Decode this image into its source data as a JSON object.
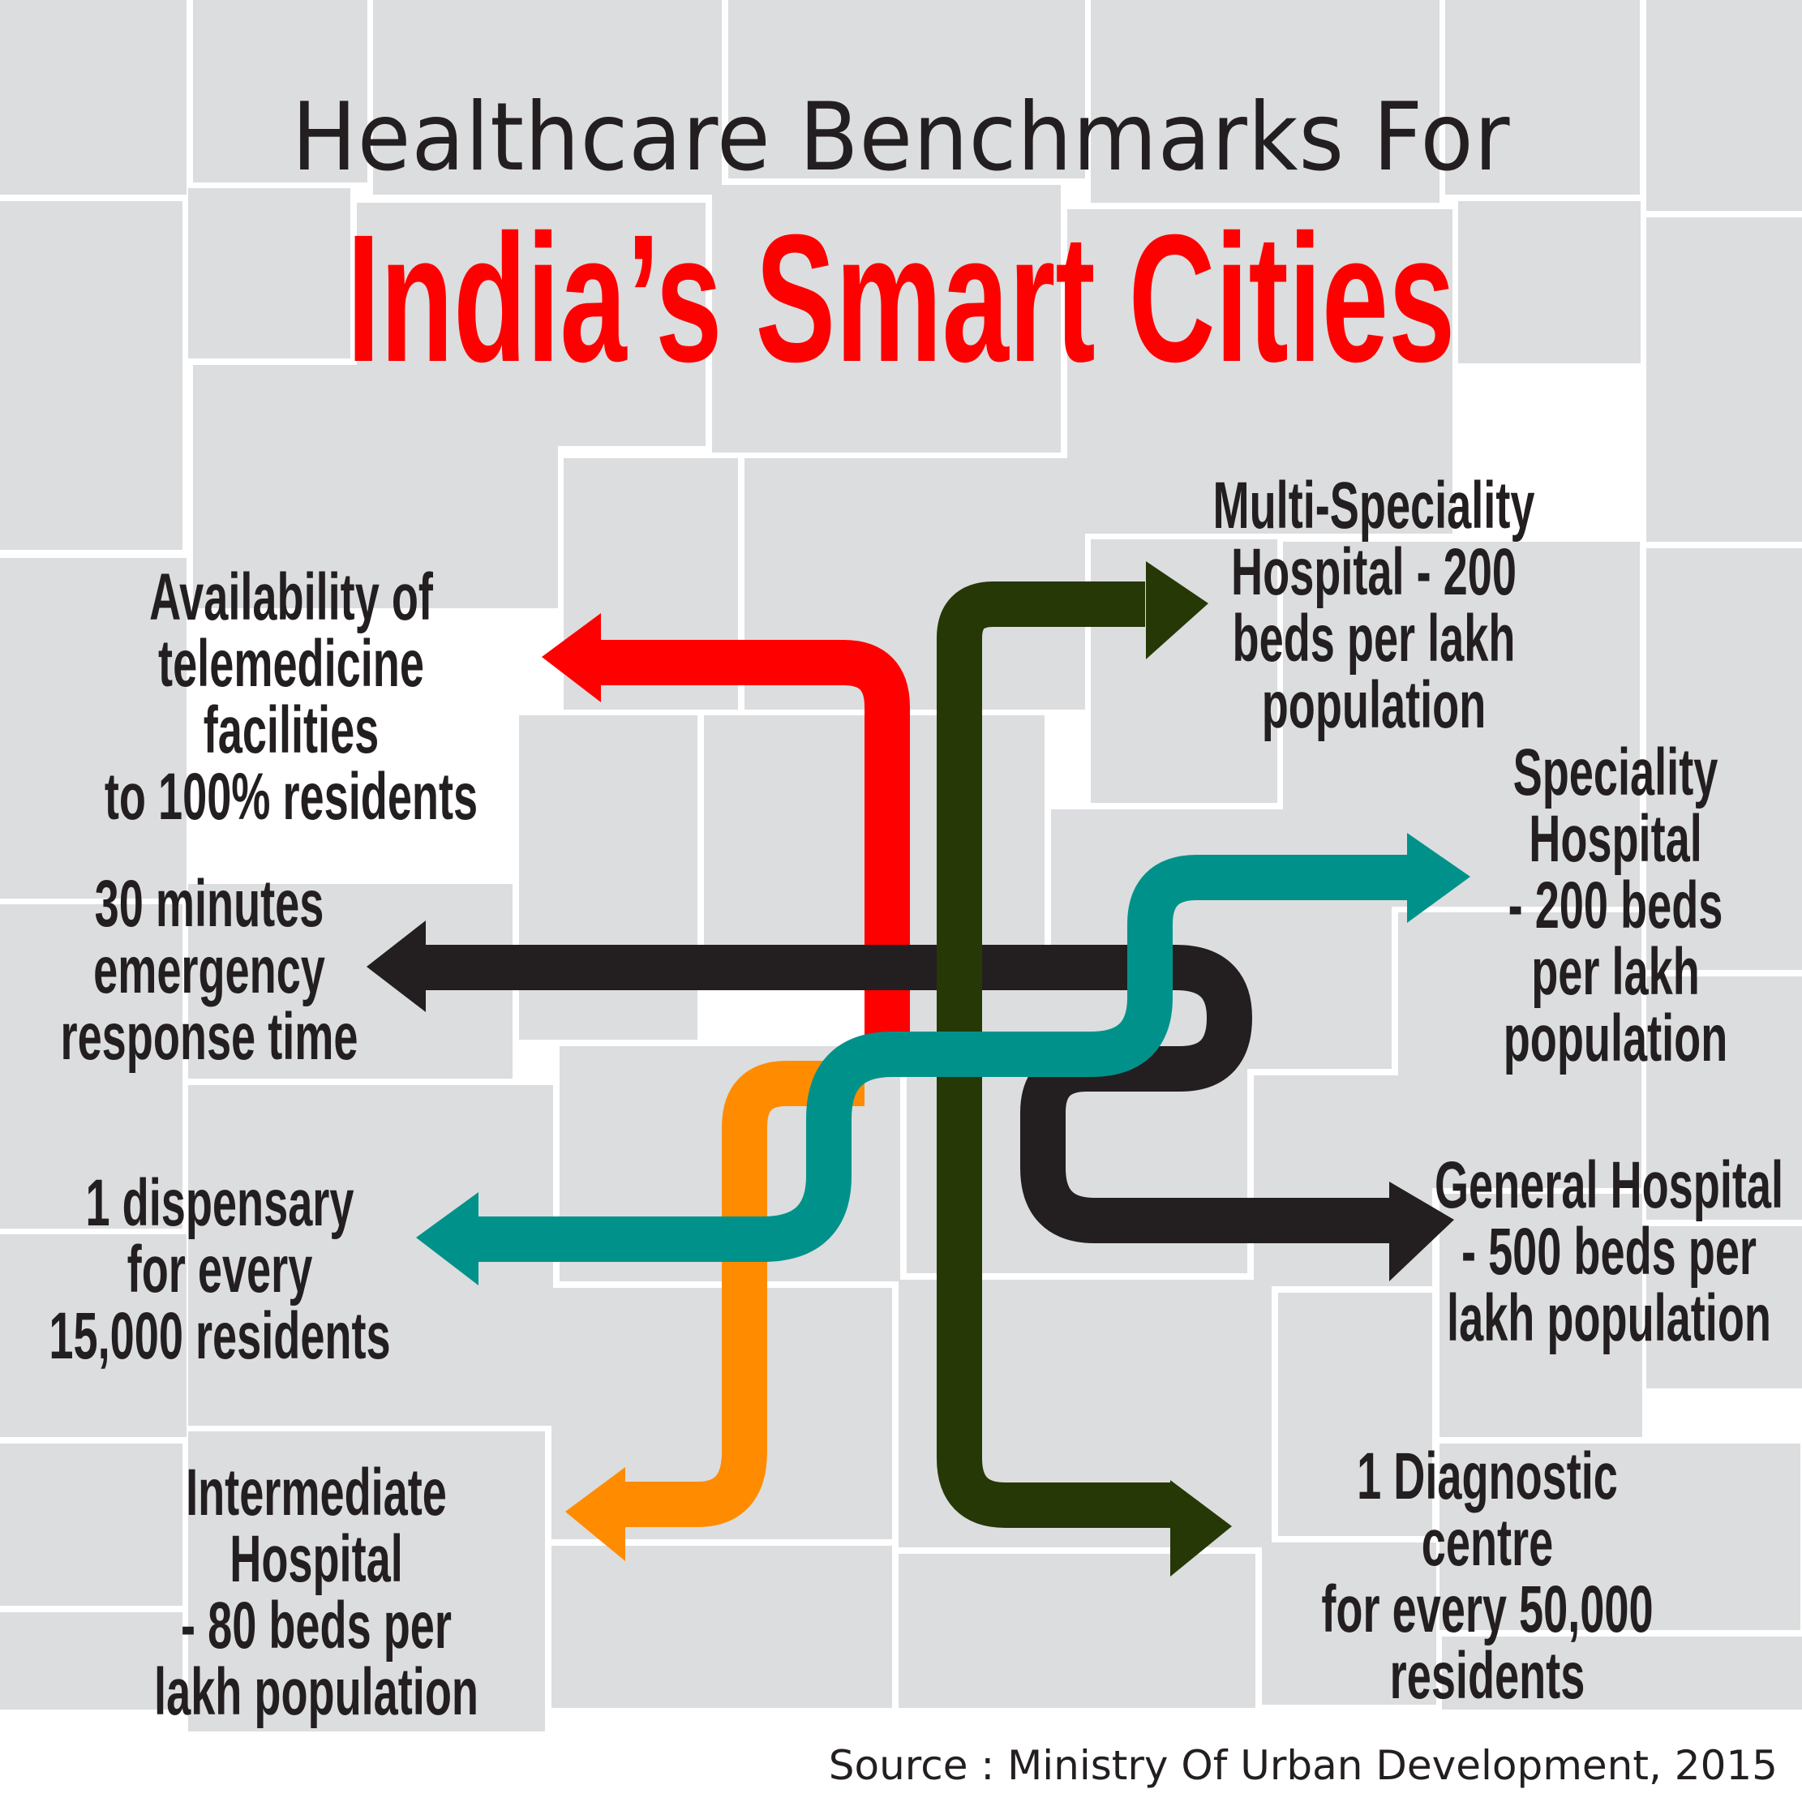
{
  "title": {
    "line1": "Healthcare Benchmarks For",
    "line2": "India’s Smart Cities"
  },
  "labels": {
    "telemedicine": "Availability of\ntelemedicine facilities\nto 100% residents",
    "emergency": "30 minutes\nemergency\nresponse time",
    "dispensary": "1 dispensary\nfor every\n15,000 residents",
    "intermediate": "Intermediate Hospital\n- 80 beds per\nlakh population",
    "multi_speciality": "Multi-Speciality\nHospital - 200\nbeds per lakh\npopulation",
    "speciality": "Speciality\nHospital\n- 200 beds\nper lakh\npopulation",
    "general": "General Hospital\n- 500 beds per\nlakh population",
    "diagnostic": "1 Diagnostic centre\nfor every 50,000\nresidents"
  },
  "source": "Source : Ministry Of Urban Development, 2015",
  "colors": {
    "red": "#ff0000",
    "black": "#231f20",
    "teal": "#00928a",
    "orange": "#ff8c00",
    "dark_green": "#253806",
    "tile": "#dcdddf",
    "text": "#231f20"
  }
}
